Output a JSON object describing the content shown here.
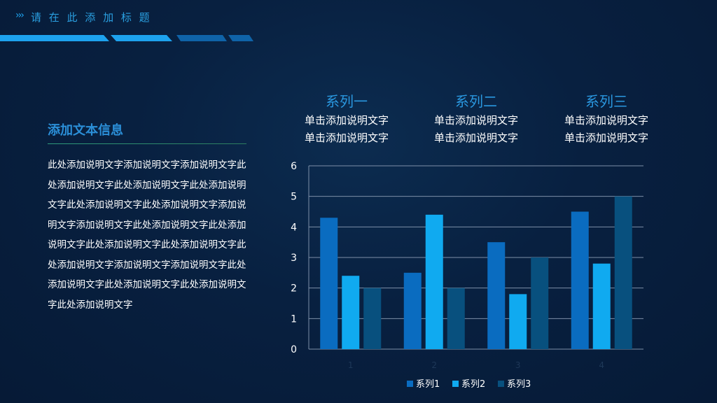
{
  "header": {
    "chevrons": "›››",
    "title": "请 在 此 添 加 标 题"
  },
  "content": {
    "heading": "添加文本信息",
    "body": "此处添加说明文字添加说明文字添加说明文字此处添加说明文字此处添加说明文字此处添加说明文字此处添加说明文字此处添加说明文字添加说明文字添加说明文字此处添加说明文字此处添加说明文字此处添加说明文字此处添加说明文字此处添加说明文字添加说明文字添加说明文字此处添加说明文字此处添加说明文字此处添加说明文字此处添加说明文字"
  },
  "series_heads": [
    {
      "name": "系列一",
      "line1": "单击添加说明文字",
      "line2": "单击添加说明文字"
    },
    {
      "name": "系列二",
      "line1": "单击添加说明文字",
      "line2": "单击添加说明文字"
    },
    {
      "name": "系列三",
      "line1": "单击添加说明文字",
      "line2": "单击添加说明文字"
    }
  ],
  "colors": {
    "series1": "#0a6cc0",
    "series2": "#10aaf0",
    "series3": "#08507e",
    "grid": "#7d8fa8",
    "tick": "#ffffff",
    "category_tick": "#1e3858"
  },
  "chart_data": {
    "type": "bar",
    "categories": [
      "1",
      "2",
      "3",
      "4"
    ],
    "series": [
      {
        "name": "系列1",
        "values": [
          4.3,
          2.5,
          3.5,
          4.5
        ]
      },
      {
        "name": "系列2",
        "values": [
          2.4,
          4.4,
          1.8,
          2.8
        ]
      },
      {
        "name": "系列3",
        "values": [
          2.0,
          2.0,
          3.0,
          5.0
        ]
      }
    ],
    "yticks": [
      "0",
      "1",
      "2",
      "3",
      "4",
      "5",
      "6"
    ],
    "ylim": [
      0,
      6
    ],
    "grid": true,
    "legend": "bottom"
  }
}
